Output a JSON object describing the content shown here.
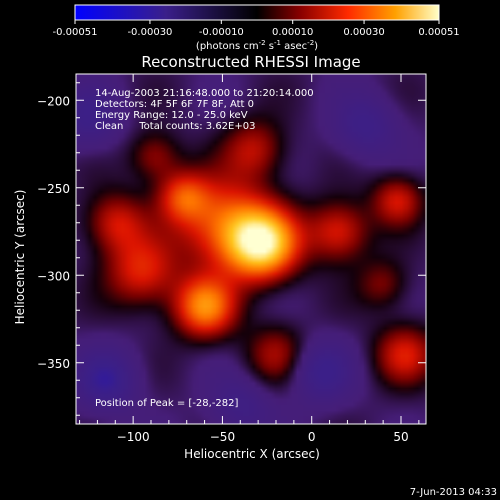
{
  "colorbar": {
    "tick_labels": [
      "-0.00051",
      "-0.00030",
      "-0.00010",
      "0.00010",
      "0.00030",
      "0.00051"
    ],
    "units_prefix": "(photons cm",
    "units_exp1": "-2",
    "units_mid": " s",
    "units_exp2": "-1",
    "units_mid2": " asec",
    "units_exp3": "-2",
    "units_suffix": ")"
  },
  "chart_data": {
    "type": "heatmap",
    "title": "Reconstructed RHESSI Image",
    "xlabel": "Heliocentric X (arcsec)",
    "ylabel": "Heliocentric Y (arcsec)",
    "xlim": [
      -132,
      64
    ],
    "ylim": [
      -385,
      -185
    ],
    "x_ticks": [
      -100,
      -50,
      0,
      50
    ],
    "y_ticks": [
      -200,
      -250,
      -300,
      -350
    ],
    "grid": false,
    "colorbar_range": [
      -0.00051,
      0.00051
    ],
    "annotations": [
      "14-Aug-2003 21:16:48.000 to 21:20:14.000",
      "Detectors: 4F 5F 6F 7F 8F, Att 0",
      "Energy Range: 12.0 - 25.0 keV",
      "Clean     Total counts: 3.62E+03"
    ],
    "peak_label": "Position of Peak = [-28,-282]",
    "peak": [
      -28,
      -282
    ],
    "sources": [
      {
        "x": -28,
        "y": -282,
        "amp": 1.0,
        "sigma": 14
      },
      {
        "x": -50,
        "y": -270,
        "amp": 0.55,
        "sigma": 18
      },
      {
        "x": -60,
        "y": -318,
        "amp": 0.7,
        "sigma": 12
      },
      {
        "x": -95,
        "y": -298,
        "amp": 0.45,
        "sigma": 14
      },
      {
        "x": -110,
        "y": -270,
        "amp": 0.4,
        "sigma": 12
      },
      {
        "x": -72,
        "y": -255,
        "amp": 0.45,
        "sigma": 10
      },
      {
        "x": 15,
        "y": -275,
        "amp": 0.45,
        "sigma": 12
      },
      {
        "x": 48,
        "y": -257,
        "amp": 0.4,
        "sigma": 10
      },
      {
        "x": 52,
        "y": -345,
        "amp": 0.4,
        "sigma": 12
      },
      {
        "x": -32,
        "y": -228,
        "amp": 0.35,
        "sigma": 12
      },
      {
        "x": -88,
        "y": -232,
        "amp": 0.3,
        "sigma": 10
      },
      {
        "x": -20,
        "y": -345,
        "amp": 0.3,
        "sigma": 12
      },
      {
        "x": 40,
        "y": -305,
        "amp": 0.25,
        "sigma": 10
      },
      {
        "x": -115,
        "y": -360,
        "amp": -0.4,
        "sigma": 12
      },
      {
        "x": 5,
        "y": -355,
        "amp": -0.35,
        "sigma": 12
      },
      {
        "x": -125,
        "y": -210,
        "amp": -0.3,
        "sigma": 12
      },
      {
        "x": 30,
        "y": -215,
        "amp": -0.3,
        "sigma": 12
      },
      {
        "x": -40,
        "y": -375,
        "amp": -0.25,
        "sigma": 12
      }
    ]
  },
  "footer": {
    "timestamp": "7-Jun-2013 04:33"
  }
}
